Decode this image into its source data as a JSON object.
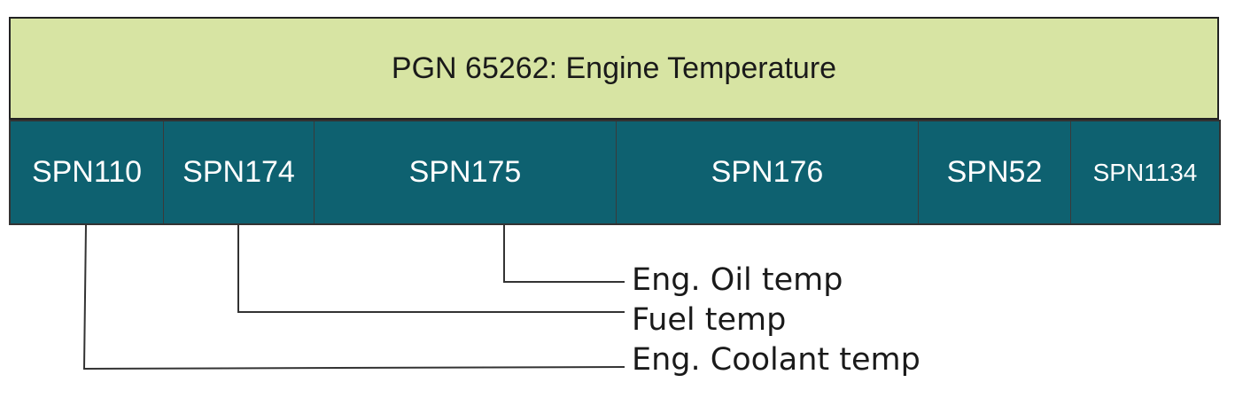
{
  "header": {
    "title": "PGN 65262: Engine Temperature"
  },
  "spns": [
    {
      "label": "SPN110"
    },
    {
      "label": "SPN174"
    },
    {
      "label": "SPN175"
    },
    {
      "label": "SPN176"
    },
    {
      "label": "SPN52"
    },
    {
      "label": "SPN1134"
    }
  ],
  "callouts": [
    {
      "text": "Eng. Oil temp"
    },
    {
      "text": "Fuel temp"
    },
    {
      "text": "Eng. Coolant temp"
    }
  ],
  "colors": {
    "header_bg": "#d7e4a3",
    "spn_bg": "#0e6170",
    "line": "#333333"
  }
}
